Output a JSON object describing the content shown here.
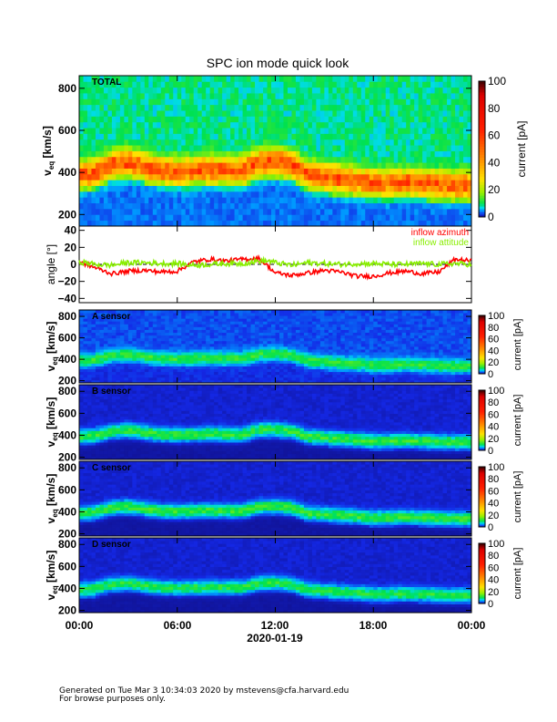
{
  "title": "SPC ion mode quick look",
  "footer": {
    "line1": "Generated on Tue Mar  3 10:34:03 2020 by mstevens@cfa.harvard.edu",
    "line2": "For browse purposes only."
  },
  "xaxis": {
    "ticks": [
      "00:00",
      "06:00",
      "12:00",
      "18:00",
      "00:00"
    ],
    "tick_hours": [
      0,
      6,
      12,
      18,
      24
    ],
    "date_label": "2020-01-19"
  },
  "colorbar": {
    "label": "current [pA]",
    "ticks": [
      "0",
      "20",
      "40",
      "60",
      "80",
      "100"
    ],
    "range": [
      0,
      100
    ]
  },
  "chart_data": [
    {
      "type": "heatmap",
      "name": "TOTAL",
      "ylabel_main": "v",
      "ylabel_sub": "eq",
      "ylabel_unit": " [km/s]",
      "ylim": [
        145,
        860
      ],
      "yticks": [
        "200",
        "400",
        "600",
        "800"
      ],
      "floor_current_high_v": 9,
      "floor_current_low_v": 4,
      "peak_current": 45
    },
    {
      "type": "line",
      "name": "angle",
      "ylabel": "angle [°]",
      "ylim": [
        -45,
        45
      ],
      "yticks": [
        "-40",
        "-20",
        "0",
        "20",
        "40"
      ],
      "legend": [
        {
          "label": "inflow azimuth",
          "color": "#ff0000"
        },
        {
          "label": "inflow attitude",
          "color": "#88ee00"
        }
      ],
      "x_hours": [
        0,
        1,
        2,
        3,
        4,
        5,
        6,
        7,
        8,
        9,
        10,
        11,
        11.6,
        12,
        13,
        14,
        15,
        16,
        17,
        18,
        19,
        20,
        21,
        22,
        23,
        24
      ],
      "azimuth": [
        3,
        -4,
        -11,
        -8,
        -7,
        -9,
        -8,
        3,
        6,
        4,
        6,
        7,
        -3,
        -10,
        -13,
        -10,
        -7,
        -9,
        -14,
        -14,
        -10,
        -8,
        -11,
        -9,
        6,
        4
      ],
      "attitude": [
        3,
        0,
        -1,
        2,
        2,
        1,
        1,
        -1,
        0,
        1,
        1,
        4,
        4,
        2,
        -1,
        2,
        1,
        0,
        1,
        1,
        0,
        0,
        1,
        0,
        1,
        0
      ]
    },
    {
      "type": "heatmap",
      "name": "A sensor",
      "ylabel_main": "v",
      "ylabel_sub": "eq",
      "ylabel_unit": " [km/s]",
      "ylim": [
        180,
        860
      ],
      "yticks": [
        "200",
        "400",
        "600",
        "800"
      ],
      "floor_current_high_v": 3,
      "floor_current_low_v": 2,
      "peak_current": 9
    },
    {
      "type": "heatmap",
      "name": "B sensor",
      "ylabel_main": "v",
      "ylabel_sub": "eq",
      "ylabel_unit": " [km/s]",
      "ylim": [
        180,
        860
      ],
      "yticks": [
        "200",
        "400",
        "600",
        "800"
      ],
      "floor_current_high_v": 1.5,
      "floor_current_low_v": 0.5,
      "peak_current": 11
    },
    {
      "type": "heatmap",
      "name": "C sensor",
      "ylabel_main": "v",
      "ylabel_sub": "eq",
      "ylabel_unit": " [km/s]",
      "ylim": [
        180,
        860
      ],
      "yticks": [
        "200",
        "400",
        "600",
        "800"
      ],
      "floor_current_high_v": 1.5,
      "floor_current_low_v": 0.5,
      "peak_current": 11
    },
    {
      "type": "heatmap",
      "name": "D sensor",
      "ylabel_main": "v",
      "ylabel_sub": "eq",
      "ylabel_unit": " [km/s]",
      "ylim": [
        180,
        860
      ],
      "yticks": [
        "200",
        "400",
        "600",
        "800"
      ],
      "floor_current_high_v": 1.5,
      "floor_current_low_v": 0.5,
      "peak_current": 10
    }
  ],
  "peak_velocity": {
    "x_hours": [
      0,
      1,
      2,
      3,
      4,
      5,
      6,
      7,
      8,
      9,
      10,
      11,
      12,
      13,
      14,
      15,
      16,
      17,
      18,
      19,
      20,
      21,
      22,
      23,
      24
    ],
    "v_kms": [
      380,
      390,
      430,
      440,
      420,
      400,
      395,
      400,
      405,
      400,
      400,
      440,
      445,
      430,
      380,
      370,
      360,
      350,
      340,
      340,
      345,
      340,
      335,
      330,
      330
    ]
  }
}
